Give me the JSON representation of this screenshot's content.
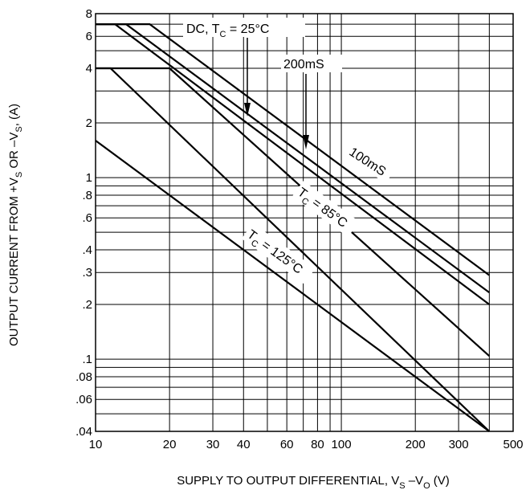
{
  "chart_data": {
    "type": "line",
    "title": "",
    "x_scale": "log",
    "y_scale": "log",
    "xlim": [
      10,
      500
    ],
    "ylim": [
      0.04,
      8
    ],
    "grid": true,
    "x_ticks": [
      {
        "value": 10,
        "label": "10"
      },
      {
        "value": 20,
        "label": "20"
      },
      {
        "value": 30,
        "label": "30"
      },
      {
        "value": 40,
        "label": "40"
      },
      {
        "value": 60,
        "label": "60"
      },
      {
        "value": 80,
        "label": "80"
      },
      {
        "value": 100,
        "label": "100"
      },
      {
        "value": 200,
        "label": "200"
      },
      {
        "value": 300,
        "label": "300"
      },
      {
        "value": 500,
        "label": "500"
      }
    ],
    "y_ticks": [
      {
        "value": 0.04,
        "label": ".04"
      },
      {
        "value": 0.06,
        "label": ".06"
      },
      {
        "value": 0.08,
        "label": ".08"
      },
      {
        "value": 0.1,
        "label": ".1"
      },
      {
        "value": 0.2,
        "label": ".2"
      },
      {
        "value": 0.3,
        "label": ".3"
      },
      {
        "value": 0.4,
        "label": ".4"
      },
      {
        "value": 0.6,
        "label": ".6"
      },
      {
        "value": 0.8,
        "label": ".8"
      },
      {
        "value": 1,
        "label": "1"
      },
      {
        "value": 2,
        "label": "2"
      },
      {
        "value": 4,
        "label": "4"
      },
      {
        "value": 6,
        "label": "6"
      },
      {
        "value": 8,
        "label": "8"
      }
    ],
    "x_minor_gridlines": [
      50,
      70,
      90,
      400
    ],
    "y_minor_gridlines": [
      0.05,
      0.07,
      0.09,
      0.5,
      0.7,
      0.9,
      3,
      5,
      7
    ],
    "xlabel": {
      "main": "SUPPLY TO OUTPUT DIFFERENTIAL, V",
      "sub1": "S",
      "mid": " –V",
      "sub2": "O",
      "end": " (V)"
    },
    "ylabel": {
      "main": "OUTPUT CURRENT FROM +V",
      "sub1": "S",
      "mid": " OR –V",
      "sub2": "S",
      "end": ", (A)"
    },
    "series": [
      {
        "points": [
          [
            10,
            7
          ],
          [
            16.6,
            7
          ],
          [
            400,
            0.29
          ]
        ]
      },
      {
        "points": [
          [
            10,
            7
          ],
          [
            13.3,
            7
          ],
          [
            400,
            0.233
          ]
        ]
      },
      {
        "points": [
          [
            10,
            7
          ],
          [
            12,
            7
          ],
          [
            400,
            0.2
          ]
        ]
      },
      {
        "points": [
          [
            10,
            4
          ],
          [
            20,
            4
          ],
          [
            400,
            0.104
          ]
        ]
      },
      {
        "points": [
          [
            10,
            4
          ],
          [
            11.5,
            4
          ],
          [
            400,
            0.04
          ]
        ]
      },
      {
        "points": [
          [
            10,
            1.6
          ],
          [
            400,
            0.04
          ]
        ]
      }
    ],
    "annotations": {
      "dc": {
        "text": "DC, T",
        "sub": "C",
        "rest": " = 25°C"
      },
      "ms200": {
        "text": "200mS"
      },
      "ms100": {
        "text": "100mS"
      },
      "tc85": {
        "text": "T",
        "sub": "C",
        "rest": " = 85°C"
      },
      "tc125": {
        "text": "T",
        "sub": "C",
        "rest": " = 125°C"
      }
    }
  }
}
